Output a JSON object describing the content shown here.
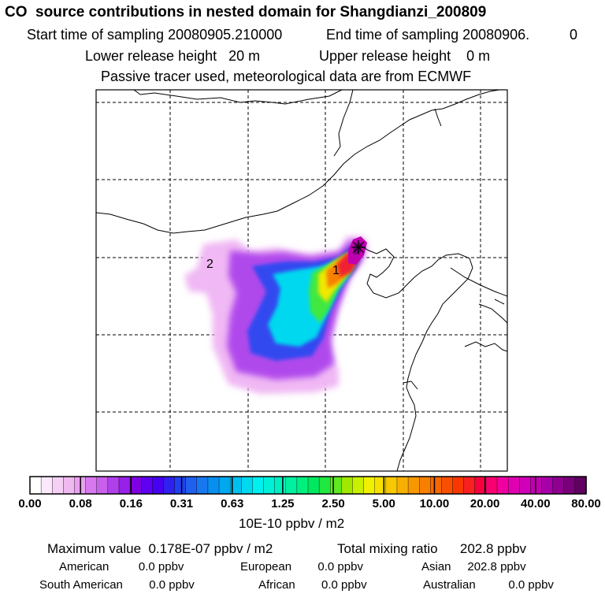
{
  "header": {
    "title": "CO  source contributions in nested domain for Shangdianzi_200809",
    "start_label": "Start time of sampling 20080905.210000",
    "end_label": "End time of sampling 20080906.",
    "end_value": "0",
    "lower_height": "Lower release height   20 m",
    "upper_height": "Upper release height    0 m",
    "tracer_note": "Passive tracer used, meteorological data are from ECMWF"
  },
  "map": {
    "region_labels": [
      "1",
      "2"
    ],
    "receptor_marker": "asterisk-icon"
  },
  "colorbar": {
    "ticks": [
      "0.00",
      "0.08",
      "0.16",
      "0.31",
      "0.63",
      "1.25",
      "2.50",
      "5.00",
      "10.00",
      "20.00",
      "40.00",
      "80.00"
    ],
    "unit": "10E-10 ppbv / m2",
    "colors": [
      "#ffffff",
      "#fbe8fb",
      "#f5d0f5",
      "#efb8ef",
      "#e9a0ef",
      "#d878ee",
      "#c860ec",
      "#b040ea",
      "#9820e8",
      "#8000e4",
      "#6000f0",
      "#4800f0",
      "#3020f0",
      "#2040f0",
      "#2060f0",
      "#1878f0",
      "#0890f0",
      "#00a8f0",
      "#00c0f0",
      "#00d8f0",
      "#00f0f0",
      "#00f0d8",
      "#00f0c0",
      "#00f0a0",
      "#00f080",
      "#00e860",
      "#20e840",
      "#60e820",
      "#a0e800",
      "#c8f000",
      "#f0f000",
      "#f8e000",
      "#f8c800",
      "#f8b000",
      "#f89800",
      "#f88000",
      "#f86800",
      "#f85000",
      "#f83800",
      "#f82020",
      "#f80040",
      "#f80070",
      "#f000a0",
      "#e000b0",
      "#d000b8",
      "#c000b0",
      "#a800a8",
      "#900090",
      "#780078",
      "#600060"
    ]
  },
  "stats": {
    "max_value": "Maximum value  0.178E-07 ppbv / m2",
    "total_mixing": "Total mixing ratio      202.8 ppbv",
    "american": "American         0.0 ppbv",
    "european": "European        0.0 ppbv",
    "asian": "Asian     202.8 ppbv",
    "south_american": "South American        0.0 ppbv",
    "african": "African        0.0 ppbv",
    "australian": "Australian          0.0 ppbv"
  }
}
